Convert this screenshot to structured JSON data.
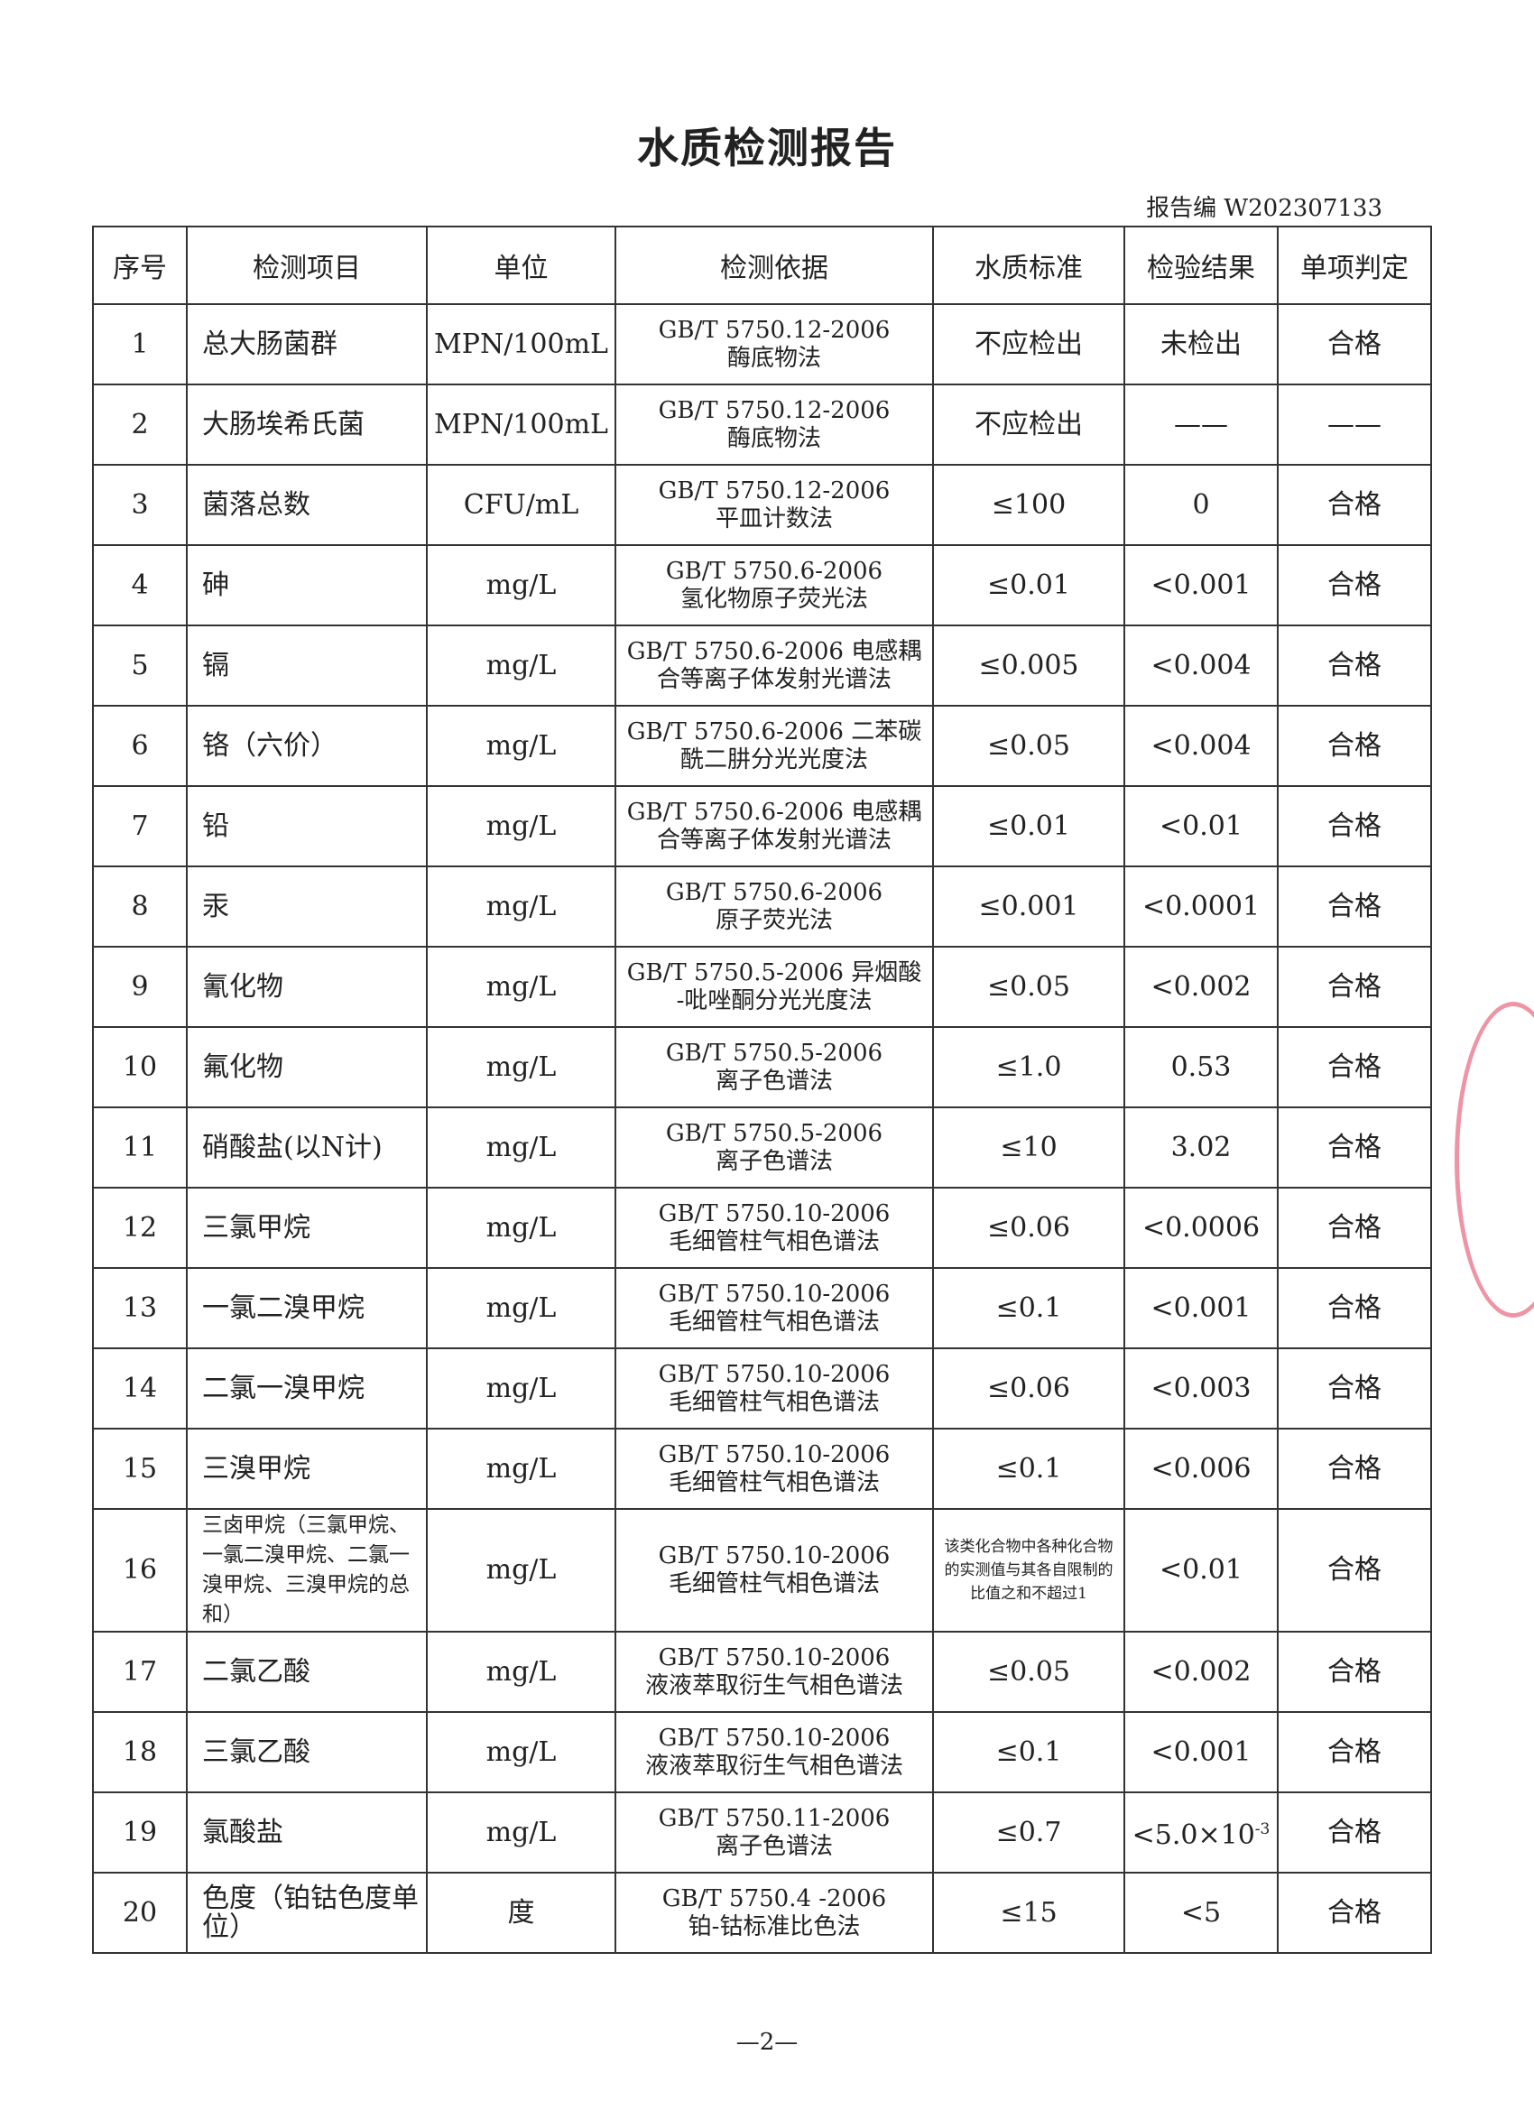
{
  "title": "水质检测报告",
  "report_no": "报告编 W202307133",
  "headers": [
    "序号",
    "检测项目",
    "单位",
    "检测依据",
    "水质标准",
    "检验结果",
    "单项判定"
  ],
  "rows": [
    {
      "no": "1",
      "item": "总大肠菌群",
      "unit": "MPN/100mL",
      "basis1": "GB/T 5750.12-2006",
      "basis2": "酶底物法",
      "std": "不应检出",
      "result": "未检出",
      "judge": "合格"
    },
    {
      "no": "2",
      "item": "大肠埃希氏菌",
      "unit": "MPN/100mL",
      "basis1": "GB/T 5750.12-2006",
      "basis2": "酶底物法",
      "std": "不应检出",
      "result": "——",
      "judge": "——"
    },
    {
      "no": "3",
      "item": "菌落总数",
      "unit": "CFU/mL",
      "basis1": "GB/T 5750.12-2006",
      "basis2": "平皿计数法",
      "std": "≤100",
      "result": "0",
      "judge": "合格"
    },
    {
      "no": "4",
      "item": "砷",
      "unit": "mg/L",
      "basis1": "GB/T 5750.6-2006",
      "basis2": "氢化物原子荧光法",
      "std": "≤0.01",
      "result": "<0.001",
      "judge": "合格"
    },
    {
      "no": "5",
      "item": "镉",
      "unit": "mg/L",
      "basis1": "GB/T 5750.6-2006 电感耦",
      "basis2": "合等离子体发射光谱法",
      "std": "≤0.005",
      "result": "<0.004",
      "judge": "合格"
    },
    {
      "no": "6",
      "item": "铬（六价）",
      "unit": "mg/L",
      "basis1": "GB/T 5750.6-2006 二苯碳",
      "basis2": "酰二肼分光光度法",
      "std": "≤0.05",
      "result": "<0.004",
      "judge": "合格"
    },
    {
      "no": "7",
      "item": "铅",
      "unit": "mg/L",
      "basis1": "GB/T 5750.6-2006 电感耦",
      "basis2": "合等离子体发射光谱法",
      "std": "≤0.01",
      "result": "<0.01",
      "judge": "合格"
    },
    {
      "no": "8",
      "item": "汞",
      "unit": "mg/L",
      "basis1": "GB/T 5750.6-2006",
      "basis2": "原子荧光法",
      "std": "≤0.001",
      "result": "<0.0001",
      "judge": "合格"
    },
    {
      "no": "9",
      "item": "氰化物",
      "unit": "mg/L",
      "basis1": "GB/T 5750.5-2006 异烟酸",
      "basis2": "-吡唑酮分光光度法",
      "std": "≤0.05",
      "result": "<0.002",
      "judge": "合格"
    },
    {
      "no": "10",
      "item": "氟化物",
      "unit": "mg/L",
      "basis1": "GB/T 5750.5-2006",
      "basis2": "离子色谱法",
      "std": "≤1.0",
      "result": "0.53",
      "judge": "合格"
    },
    {
      "no": "11",
      "item": "硝酸盐(以N计)",
      "unit": "mg/L",
      "basis1": "GB/T 5750.5-2006",
      "basis2": "离子色谱法",
      "std": "≤10",
      "result": "3.02",
      "judge": "合格"
    },
    {
      "no": "12",
      "item": "三氯甲烷",
      "unit": "mg/L",
      "basis1": "GB/T 5750.10-2006",
      "basis2": "毛细管柱气相色谱法",
      "std": "≤0.06",
      "result": "<0.0006",
      "judge": "合格"
    },
    {
      "no": "13",
      "item": "一氯二溴甲烷",
      "unit": "mg/L",
      "basis1": "GB/T 5750.10-2006",
      "basis2": "毛细管柱气相色谱法",
      "std": "≤0.1",
      "result": "<0.001",
      "judge": "合格"
    },
    {
      "no": "14",
      "item": "二氯一溴甲烷",
      "unit": "mg/L",
      "basis1": "GB/T 5750.10-2006",
      "basis2": "毛细管柱气相色谱法",
      "std": "≤0.06",
      "result": "<0.003",
      "judge": "合格"
    },
    {
      "no": "15",
      "item": "三溴甲烷",
      "unit": "mg/L",
      "basis1": "GB/T 5750.10-2006",
      "basis2": "毛细管柱气相色谱法",
      "std": "≤0.1",
      "result": "<0.006",
      "judge": "合格"
    },
    {
      "no": "16",
      "item": "三卤甲烷（三氯甲烷、一氯二溴甲烷、二氯一溴甲烷、三溴甲烷的总和）",
      "unit": "mg/L",
      "basis1": "GB/T 5750.10-2006",
      "basis2": "毛细管柱气相色谱法",
      "std": "该类化合物中各种化合物的实测值与其各自限制的比值之和不超过1",
      "result": "<0.01",
      "judge": "合格"
    },
    {
      "no": "17",
      "item": "二氯乙酸",
      "unit": "mg/L",
      "basis1": "GB/T 5750.10-2006",
      "basis2": "液液萃取衍生气相色谱法",
      "std": "≤0.05",
      "result": "<0.002",
      "judge": "合格"
    },
    {
      "no": "18",
      "item": "三氯乙酸",
      "unit": "mg/L",
      "basis1": "GB/T 5750.10-2006",
      "basis2": "液液萃取衍生气相色谱法",
      "std": "≤0.1",
      "result": "<0.001",
      "judge": "合格"
    },
    {
      "no": "19",
      "item": "氯酸盐",
      "unit": "mg/L",
      "basis1": "GB/T 5750.11-2006",
      "basis2": "离子色谱法",
      "std": "≤0.7",
      "result": "<5.0×10",
      "result_sup": "-3",
      "judge": "合格"
    },
    {
      "no": "20",
      "item": "色度（铂钴色度单位）",
      "unit": "度",
      "basis1": "GB/T 5750.4 -2006",
      "basis2": "铂-钴标准比色法",
      "std": "≤15",
      "result": "<5",
      "judge": "合格"
    }
  ],
  "page_number": "—2—",
  "stamp_color": "#e13c5a"
}
